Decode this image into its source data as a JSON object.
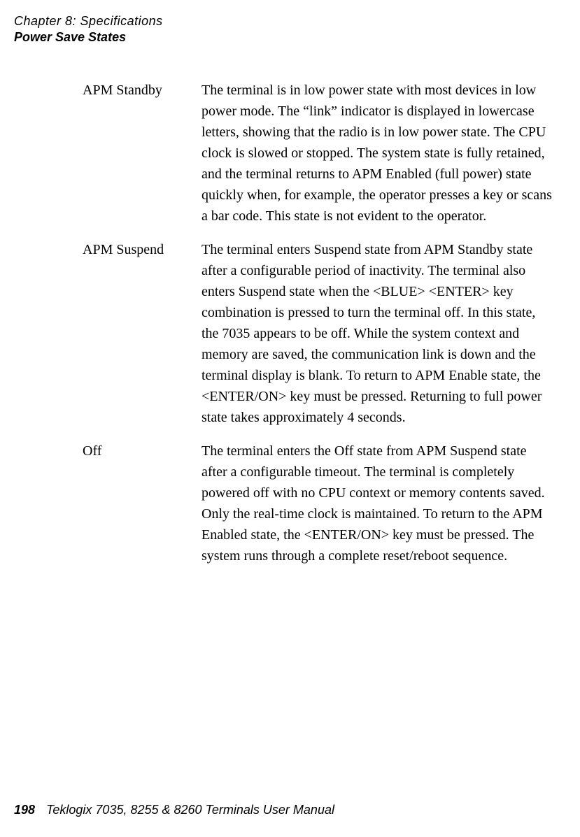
{
  "header": {
    "chapter": "Chapter  8:  Specifications",
    "section": "Power Save States"
  },
  "entries": [
    {
      "term": "APM Standby",
      "desc": "The terminal is in low power state with most devices in low power mode. The “link” indicator is displayed in lowercase letters, showing that the radio is in low power state. The CPU clock is slowed or stopped. The system state is fully retained, and the terminal returns to APM Enabled (full power) state quickly when, for example, the operator presses a key or scans a bar code. This state is not evident to the operator."
    },
    {
      "term": "APM Suspend",
      "desc": "The terminal enters Suspend state from APM Standby state after a configurable period of inactivity. The terminal also enters Suspend state when the <BLUE> <ENTER> key combination is pressed to turn the terminal off. In this state, the 7035 appears to be off. While the system context and memory are saved, the communication link is down and the terminal display is blank. To return to APM Enable state, the <ENTER/ON> key must be pressed. Returning to full power state takes approximately 4 seconds."
    },
    {
      "term": "Off",
      "desc": "The terminal enters the Off state from APM Suspend state after a configurable timeout. The terminal is completely powered off with no CPU context or memory contents saved. Only the real-time clock is maintained. To return to the APM Enabled state, the <ENTER/ON> key must be pressed. The system runs through a complete reset/reboot sequence."
    }
  ],
  "footer": {
    "page": "198",
    "title": "Teklogix 7035, 8255 & 8260 Terminals User Manual"
  }
}
